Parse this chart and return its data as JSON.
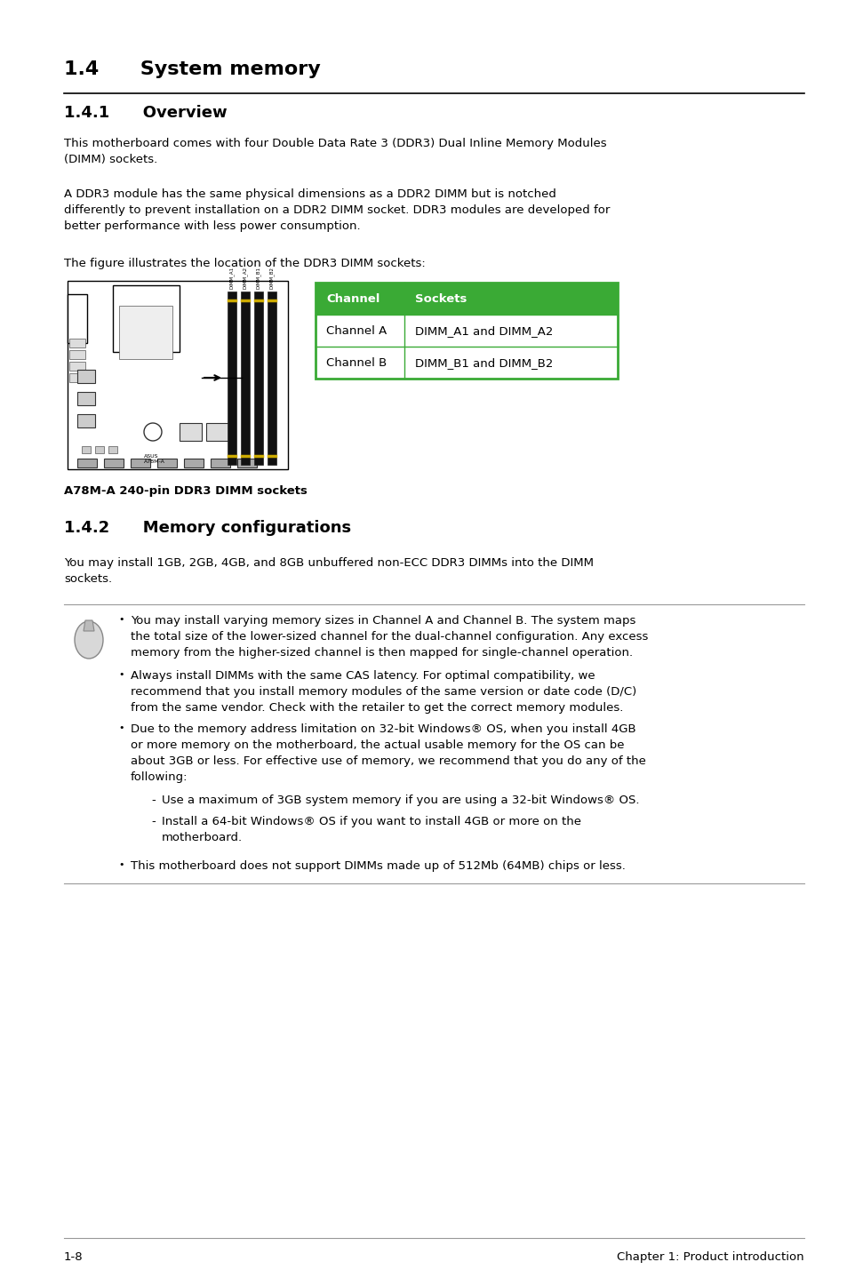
{
  "background_color": "#ffffff",
  "section_title": "1.4      System memory",
  "subsection1_title": "1.4.1      Overview",
  "para1": "This motherboard comes with four Double Data Rate 3 (DDR3) Dual Inline Memory Modules\n(DIMM) sockets.",
  "para2": "A DDR3 module has the same physical dimensions as a DDR2 DIMM but is notched\ndifferently to prevent installation on a DDR2 DIMM socket. DDR3 modules are developed for\nbetter performance with less power consumption.",
  "para3": "The figure illustrates the location of the DDR3 DIMM sockets:",
  "table_header_bg": "#3aaa35",
  "table_header_text": "#ffffff",
  "table_border_color": "#3aaa35",
  "table_col1_header": "Channel",
  "table_col2_header": "Sockets",
  "table_row1_col1": "Channel A",
  "table_row1_col2": "DIMM_A1 and DIMM_A2",
  "table_row2_col1": "Channel B",
  "table_row2_col2": "DIMM_B1 and DIMM_B2",
  "figure_caption": "A78M-A 240-pin DDR3 DIMM sockets",
  "subsection2_title": "1.4.2      Memory configurations",
  "para4": "You may install 1GB, 2GB, 4GB, and 8GB unbuffered non-ECC DDR3 DIMMs into the DIMM\nsockets.",
  "bullet1": "You may install varying memory sizes in Channel A and Channel B. The system maps\nthe total size of the lower-sized channel for the dual-channel configuration. Any excess\nmemory from the higher-sized channel is then mapped for single-channel operation.",
  "bullet2": "Always install DIMMs with the same CAS latency. For optimal compatibility, we\nrecommend that you install memory modules of the same version or date code (D/C)\nfrom the same vendor. Check with the retailer to get the correct memory modules.",
  "bullet3": "Due to the memory address limitation on 32-bit Windows® OS, when you install 4GB\nor more memory on the motherboard, the actual usable memory for the OS can be\nabout 3GB or less. For effective use of memory, we recommend that you do any of the\nfollowing:",
  "sub_bullet1": "Use a maximum of 3GB system memory if you are using a 32-bit Windows® OS.",
  "sub_bullet2": "Install a 64-bit Windows® OS if you want to install 4GB or more on the\nmotherboard.",
  "bullet4": "This motherboard does not support DIMMs made up of 512Mb (64MB) chips or less.",
  "footer_left": "1-8",
  "footer_right": "Chapter 1: Product introduction",
  "body_font_size": 9.5,
  "title_font_size": 16,
  "subtitle_font_size": 13
}
